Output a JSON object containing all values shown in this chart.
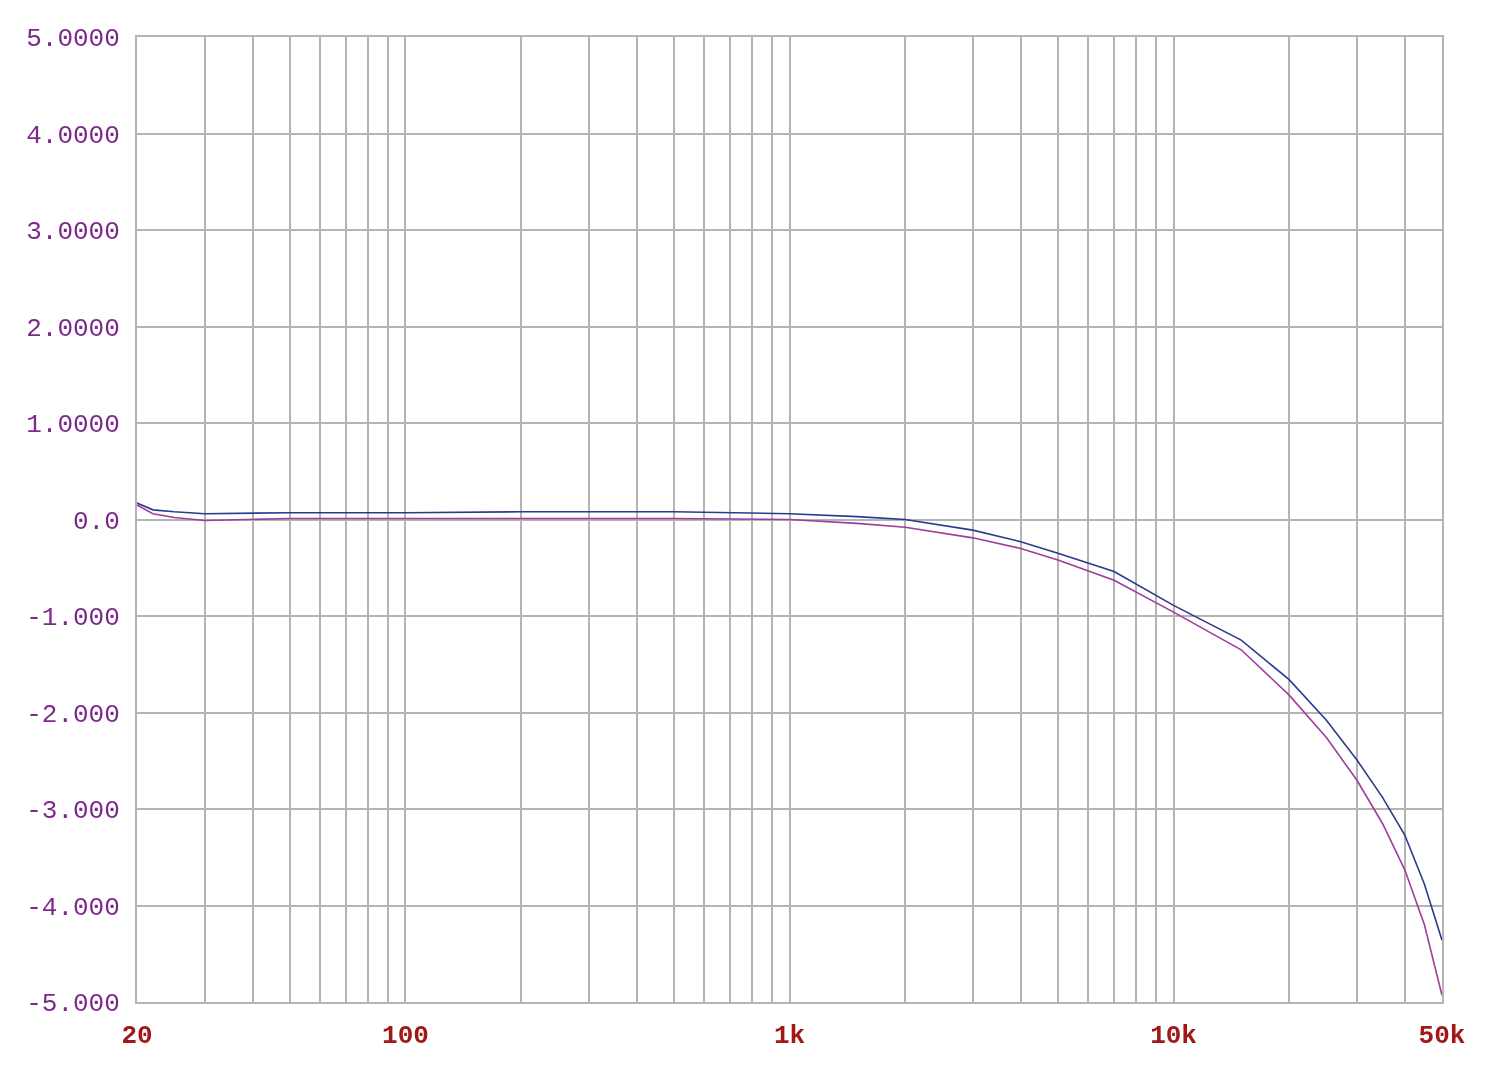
{
  "chart_data": {
    "type": "line",
    "log": "x",
    "grid": true,
    "marker": "none",
    "line_style": "solid",
    "xlim": [
      20,
      50000
    ],
    "xticks": [
      {
        "value": 20,
        "label": "20"
      },
      {
        "value": 30,
        "label": null
      },
      {
        "value": 40,
        "label": null
      },
      {
        "value": 50,
        "label": null
      },
      {
        "value": 60,
        "label": null
      },
      {
        "value": 70,
        "label": null
      },
      {
        "value": 80,
        "label": null
      },
      {
        "value": 90,
        "label": null
      },
      {
        "value": 100,
        "label": "100"
      },
      {
        "value": 200,
        "label": null
      },
      {
        "value": 300,
        "label": null
      },
      {
        "value": 400,
        "label": null
      },
      {
        "value": 500,
        "label": null
      },
      {
        "value": 600,
        "label": null
      },
      {
        "value": 700,
        "label": null
      },
      {
        "value": 800,
        "label": null
      },
      {
        "value": 900,
        "label": null
      },
      {
        "value": 1000,
        "label": "1k"
      },
      {
        "value": 2000,
        "label": null
      },
      {
        "value": 3000,
        "label": null
      },
      {
        "value": 4000,
        "label": null
      },
      {
        "value": 5000,
        "label": null
      },
      {
        "value": 6000,
        "label": null
      },
      {
        "value": 7000,
        "label": null
      },
      {
        "value": 8000,
        "label": null
      },
      {
        "value": 9000,
        "label": null
      },
      {
        "value": 10000,
        "label": "10k"
      },
      {
        "value": 20000,
        "label": null
      },
      {
        "value": 30000,
        "label": null
      },
      {
        "value": 40000,
        "label": null
      },
      {
        "value": 50000,
        "label": "50k"
      }
    ],
    "ylim": [
      -5,
      5
    ],
    "yticks": [
      {
        "value": 5,
        "label": "5.0000"
      },
      {
        "value": 4,
        "label": "4.0000"
      },
      {
        "value": 3,
        "label": "3.0000"
      },
      {
        "value": 2,
        "label": "2.0000"
      },
      {
        "value": 1,
        "label": "1.0000"
      },
      {
        "value": 0,
        "label": "0.0"
      },
      {
        "value": -1,
        "label": "-1.000"
      },
      {
        "value": -2,
        "label": "-2.000"
      },
      {
        "value": -3,
        "label": "-3.000"
      },
      {
        "value": -4,
        "label": "-4.000"
      },
      {
        "value": -5,
        "label": "-5.000"
      }
    ],
    "x": [
      20,
      22,
      25,
      30,
      50,
      100,
      200,
      500,
      1000,
      1500,
      2000,
      3000,
      4000,
      5000,
      7000,
      10000,
      15000,
      20000,
      25000,
      30000,
      35000,
      40000,
      45000,
      50000
    ],
    "series": [
      {
        "color": "#2b3a8c",
        "values": [
          0.17,
          0.1,
          0.08,
          0.06,
          0.07,
          0.07,
          0.08,
          0.08,
          0.06,
          0.03,
          0.0,
          -0.11,
          -0.23,
          -0.35,
          -0.54,
          -0.89,
          -1.25,
          -1.66,
          -2.08,
          -2.49,
          -2.88,
          -3.27,
          -3.78,
          -4.36
        ]
      },
      {
        "color": "#a03c9c",
        "values": [
          0.15,
          0.06,
          0.02,
          -0.01,
          0.01,
          0.01,
          0.01,
          0.01,
          0.0,
          -0.04,
          -0.08,
          -0.19,
          -0.3,
          -0.42,
          -0.63,
          -0.96,
          -1.35,
          -1.82,
          -2.26,
          -2.7,
          -3.15,
          -3.63,
          -4.2,
          -4.93
        ]
      }
    ]
  }
}
